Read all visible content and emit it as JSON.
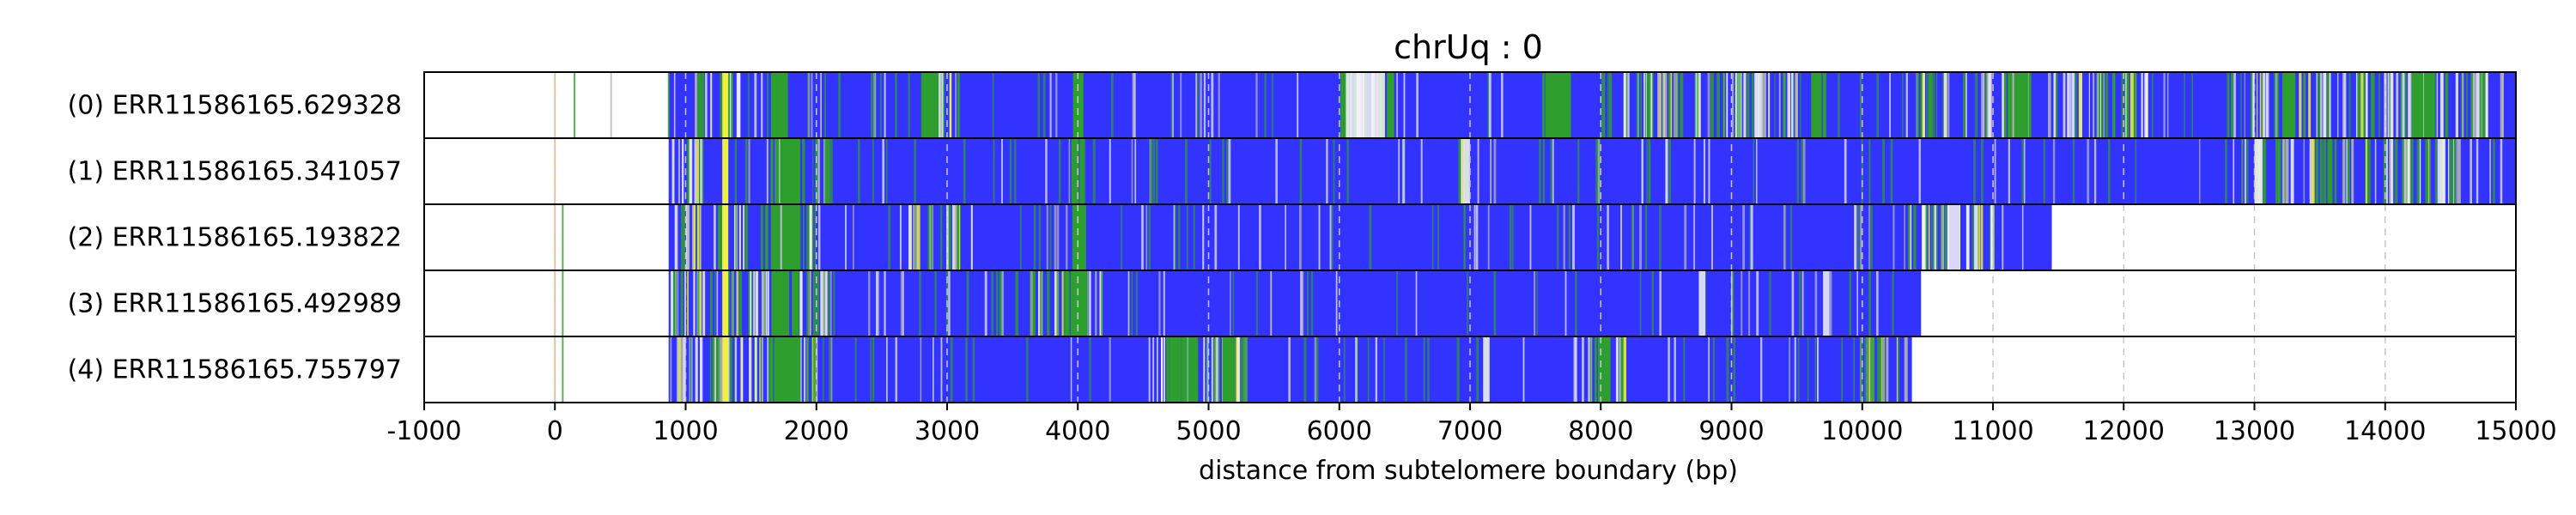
{
  "chart_data": {
    "type": "heatmap",
    "title": "chrUq : 0",
    "xlabel": "distance from subtelomere boundary (bp)",
    "xlim": [
      -1000,
      15000
    ],
    "xticks": [
      -1000,
      0,
      1000,
      2000,
      3000,
      4000,
      5000,
      6000,
      7000,
      8000,
      9000,
      10000,
      11000,
      12000,
      13000,
      14000,
      15000
    ],
    "grid": "vertical dashed at each x tick",
    "colors": {
      "base": "#3333ff",
      "green": "#2e9e2e",
      "yellow": "#f0f040",
      "white": "#f4f4f4",
      "grey": "#b8b8b8",
      "orange": "#f0b060",
      "frame": "#000000"
    },
    "reads": [
      {
        "label": "(0) ERR11586165.629328",
        "start": 870,
        "end": 15000,
        "pre_marks": [
          0,
          150,
          430,
          870
        ],
        "green_regions": [
          [
            1650,
            1760
          ],
          [
            2800,
            2920
          ],
          [
            3950,
            4020
          ],
          [
            6000,
            6050
          ],
          [
            6300,
            6400
          ],
          [
            7550,
            7750
          ],
          [
            9600,
            9700
          ],
          [
            11100,
            11250
          ],
          [
            13200,
            13300
          ],
          [
            14200,
            14350
          ]
        ],
        "mixed_regions": [
          [
            1000,
            1400
          ],
          [
            2700,
            3100
          ],
          [
            6050,
            6450
          ],
          [
            8000,
            9500
          ],
          [
            10400,
            12200
          ],
          [
            12800,
            14900
          ]
        ],
        "white_regions": [
          [
            6050,
            6350
          ]
        ],
        "yellow_marks": [
          1300
        ]
      },
      {
        "label": "(1) ERR11586165.341057",
        "start": 870,
        "end": 15000,
        "pre_marks": [
          0
        ],
        "green_regions": [
          [
            1650,
            1850
          ],
          [
            3950,
            4020
          ]
        ],
        "mixed_regions": [
          [
            880,
            1100
          ],
          [
            1650,
            2100
          ],
          [
            6900,
            7000
          ],
          [
            13000,
            14600
          ]
        ],
        "white_regions": [
          [
            6950,
            7000
          ],
          [
            13000,
            13050
          ],
          [
            14400,
            14450
          ]
        ],
        "yellow_marks": [
          1300
        ]
      },
      {
        "label": "(2) ERR11586165.193822",
        "start": 870,
        "end": 11450,
        "pre_marks": [
          0,
          60
        ],
        "green_regions": [
          [
            1650,
            1850
          ],
          [
            3950,
            4050
          ]
        ],
        "mixed_regions": [
          [
            880,
            2000
          ],
          [
            2700,
            3200
          ],
          [
            10300,
            11000
          ]
        ],
        "white_regions": [
          [
            10650,
            10750
          ]
        ],
        "yellow_marks": [
          1300
        ]
      },
      {
        "label": "(3) ERR11586165.492989",
        "start": 870,
        "end": 10450,
        "pre_marks": [
          0,
          60
        ],
        "green_regions": [
          [
            1650,
            1850
          ],
          [
            3900,
            4050
          ]
        ],
        "mixed_regions": [
          [
            880,
            2100
          ],
          [
            3600,
            4200
          ]
        ],
        "white_regions": [
          [
            8750,
            8800
          ],
          [
            9700,
            9750
          ]
        ],
        "yellow_marks": [
          1300
        ]
      },
      {
        "label": "(4) ERR11586165.755797",
        "start": 870,
        "end": 10380,
        "pre_marks": [
          0,
          60
        ],
        "green_regions": [
          [
            1650,
            1850
          ],
          [
            4700,
            4900
          ],
          [
            5100,
            5200
          ],
          [
            7950,
            8050
          ]
        ],
        "mixed_regions": [
          [
            880,
            2000
          ],
          [
            4600,
            5300
          ],
          [
            7900,
            8200
          ],
          [
            9950,
            10350
          ]
        ],
        "white_regions": [
          [
            7100,
            7150
          ]
        ],
        "yellow_marks": [
          1300
        ]
      }
    ]
  }
}
